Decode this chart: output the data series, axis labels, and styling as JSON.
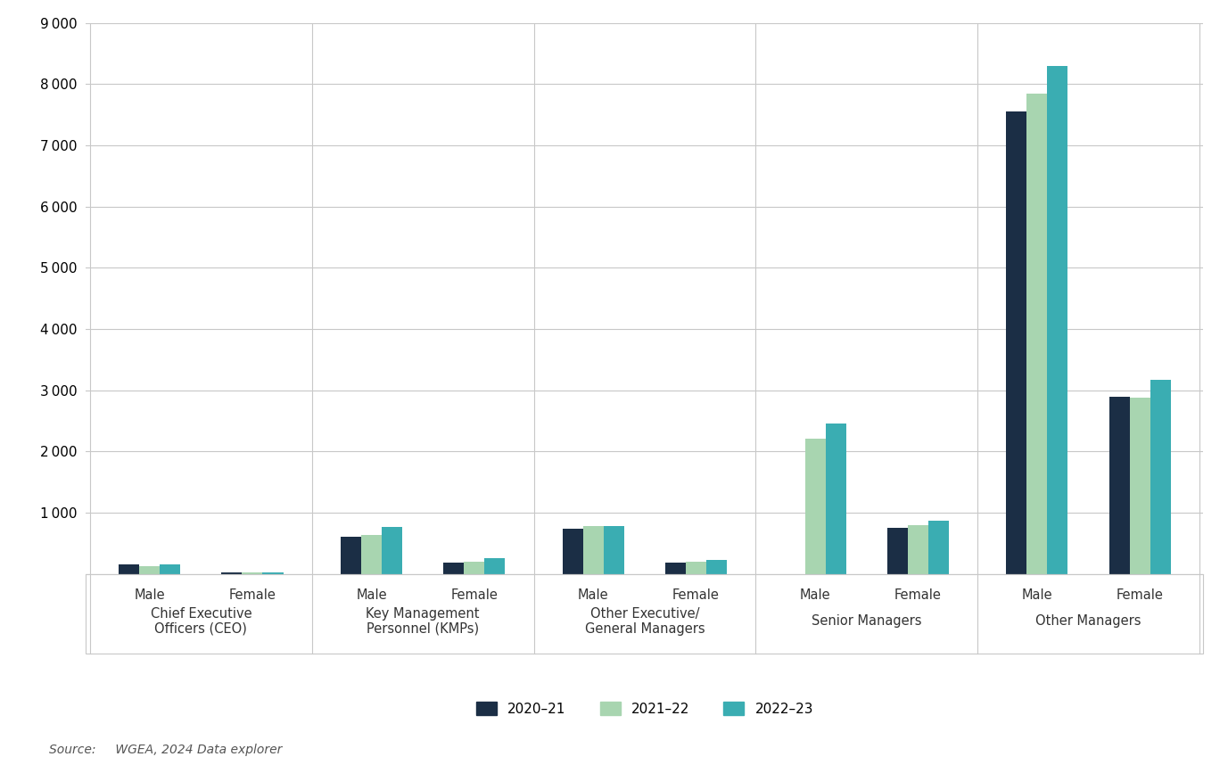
{
  "group_labels": [
    "Chief Executive\nOfficers (CEO)",
    "Key Management\nPersonnel (KMPs)",
    "Other Executive/\nGeneral Managers",
    "Senior Managers",
    "Other Managers"
  ],
  "series": {
    "2020-21": [
      150,
      20,
      600,
      175,
      730,
      175,
      0,
      750,
      7550,
      2890
    ],
    "2021-22": [
      130,
      20,
      640,
      200,
      775,
      190,
      2200,
      800,
      7850,
      2880
    ],
    "2022-23": [
      150,
      20,
      760,
      250,
      775,
      220,
      2450,
      860,
      8300,
      3175
    ]
  },
  "series_labels": [
    "2020–21",
    "2021–22",
    "2022–23"
  ],
  "colors": [
    "#1b2e45",
    "#a8d5b0",
    "#3aadb2"
  ],
  "ylim": [
    0,
    9000
  ],
  "yticks": [
    0,
    1000,
    2000,
    3000,
    4000,
    5000,
    6000,
    7000,
    8000,
    9000
  ],
  "background_color": "#ffffff",
  "grid_color": "#c8c8c8",
  "source_text": "Source:     WGEA, 2024 Data explorer",
  "legend_fontsize": 11,
  "tick_fontsize": 11,
  "source_fontsize": 10,
  "male_female_labels": [
    "Male",
    "Female",
    "Male",
    "Female",
    "Male",
    "Female",
    "Male",
    "Female",
    "Male",
    "Female"
  ]
}
